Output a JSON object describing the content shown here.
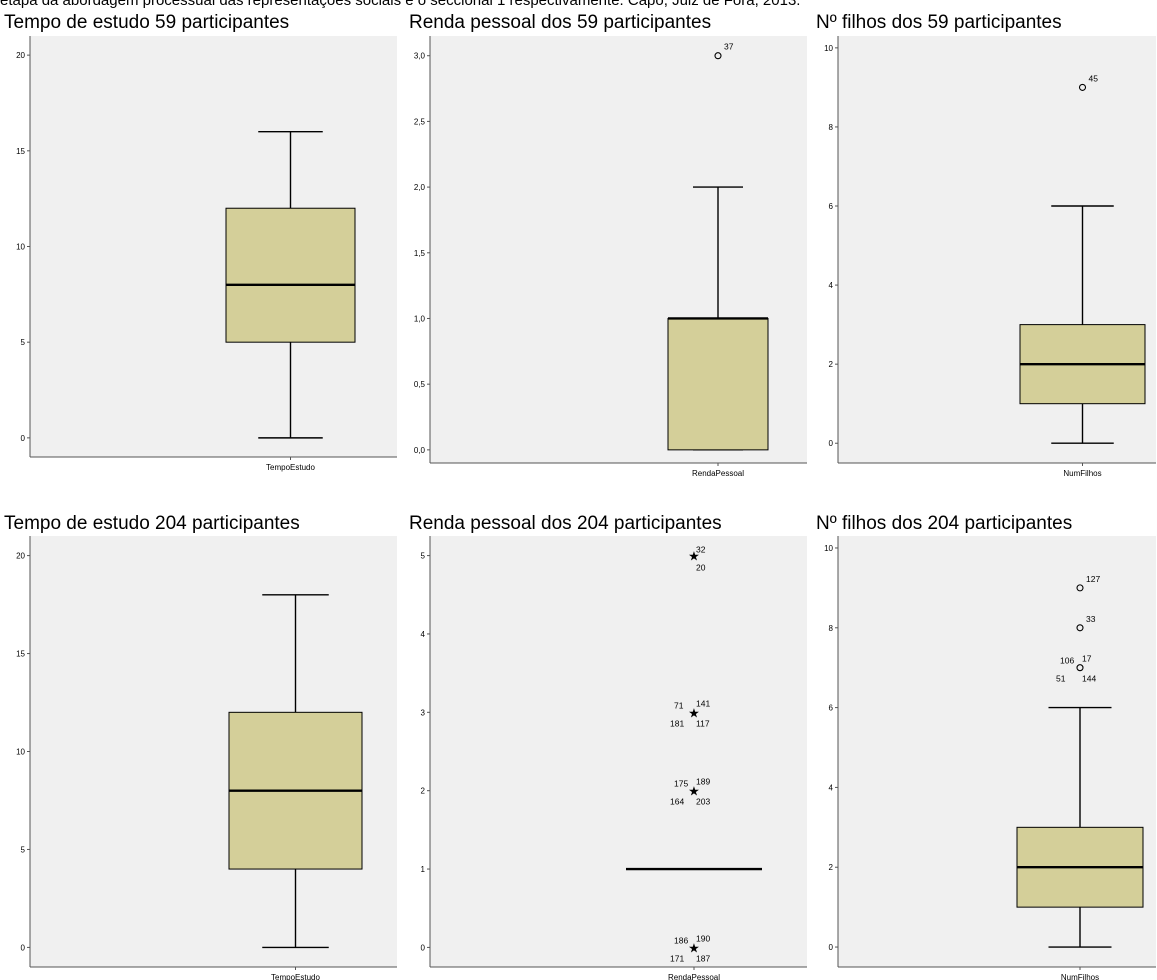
{
  "caption": "etapa da abordagem processual das representações sociais e o seccional 1 respectivamente. Capo, Juiz de Fora, 2013.",
  "colors": {
    "box_fill": "#d4cf99",
    "plot_bg": "#f0f0f0",
    "line": "#000000"
  },
  "chart_data": [
    {
      "type": "box",
      "title": "Tempo de estudo 59 participantes",
      "category": "TempoEstudo",
      "ylim": [
        -1,
        21
      ],
      "yticks": [
        0,
        5,
        10,
        15,
        20
      ],
      "tick_labels": [
        "0",
        "5",
        "10",
        "15",
        "20"
      ],
      "box": {
        "whisker_low": 0,
        "q1": 5,
        "median": 8,
        "q3": 12,
        "whisker_high": 16
      },
      "outliers": []
    },
    {
      "type": "box",
      "title": "Renda pessoal dos 59 participantes",
      "category": "RendaPessoal",
      "ylim": [
        -0.1,
        3.15
      ],
      "yticks": [
        0,
        0.5,
        1,
        1.5,
        2,
        2.5,
        3
      ],
      "tick_labels": [
        "0,0",
        "0,5",
        "1,0",
        "1,5",
        "2,0",
        "2,5",
        "3,0"
      ],
      "box": {
        "whisker_low": 0,
        "q1": 0,
        "median": 1,
        "q3": 1,
        "whisker_high": 2
      },
      "outliers": [
        {
          "value": 3,
          "marker": "circle",
          "labels": [
            "37"
          ]
        }
      ]
    },
    {
      "type": "box",
      "title": "Nº filhos dos 59 participantes",
      "category": "NumFilhos",
      "ylim": [
        -0.5,
        10.3
      ],
      "yticks": [
        0,
        2,
        4,
        6,
        8,
        10
      ],
      "tick_labels": [
        "0",
        "2",
        "4",
        "6",
        "8",
        "10"
      ],
      "box": {
        "whisker_low": 0,
        "q1": 1,
        "median": 2,
        "q3": 3,
        "whisker_high": 6
      },
      "outliers": [
        {
          "value": 9,
          "marker": "circle",
          "labels": [
            "45"
          ]
        }
      ]
    },
    {
      "type": "box",
      "title": "Tempo de estudo 204 participantes",
      "category": "TempoEstudo",
      "ylim": [
        -1,
        21
      ],
      "yticks": [
        0,
        5,
        10,
        15,
        20
      ],
      "tick_labels": [
        "0",
        "5",
        "10",
        "15",
        "20"
      ],
      "box": {
        "whisker_low": 0,
        "q1": 4,
        "median": 8,
        "q3": 12,
        "whisker_high": 18
      },
      "outliers": []
    },
    {
      "type": "box",
      "title": "Renda pessoal dos 204 participantes",
      "category": "RendaPessoal",
      "ylim": [
        -0.25,
        5.25
      ],
      "yticks": [
        0,
        1,
        2,
        3,
        4,
        5
      ],
      "tick_labels": [
        "0",
        "1",
        "2",
        "3",
        "4",
        "5"
      ],
      "box": {
        "whisker_low": 1,
        "q1": 1,
        "median": 1,
        "q3": 1,
        "whisker_high": 1
      },
      "outliers": [
        {
          "value": 5,
          "marker": "star",
          "labels": [
            "32",
            "20"
          ]
        },
        {
          "value": 3,
          "marker": "star",
          "labels": [
            "71",
            "141",
            "181",
            "117"
          ]
        },
        {
          "value": 2,
          "marker": "star",
          "labels": [
            "175",
            "189",
            "164",
            "203"
          ]
        },
        {
          "value": 0,
          "marker": "star",
          "labels": [
            "186",
            "190",
            "171",
            "187"
          ]
        }
      ]
    },
    {
      "type": "box",
      "title": "Nº filhos dos 204 participantes",
      "category": "NumFilhos",
      "ylim": [
        -0.5,
        10.3
      ],
      "yticks": [
        0,
        2,
        4,
        6,
        8,
        10
      ],
      "tick_labels": [
        "0",
        "2",
        "4",
        "6",
        "8",
        "10"
      ],
      "box": {
        "whisker_low": 0,
        "q1": 1,
        "median": 2,
        "q3": 3,
        "whisker_high": 6
      },
      "outliers": [
        {
          "value": 9,
          "marker": "circle",
          "labels": [
            "127"
          ]
        },
        {
          "value": 8,
          "marker": "circle",
          "labels": [
            "33"
          ]
        },
        {
          "value": 7,
          "marker": "circle",
          "labels": [
            "106",
            "17",
            "51",
            "144"
          ]
        }
      ]
    }
  ]
}
